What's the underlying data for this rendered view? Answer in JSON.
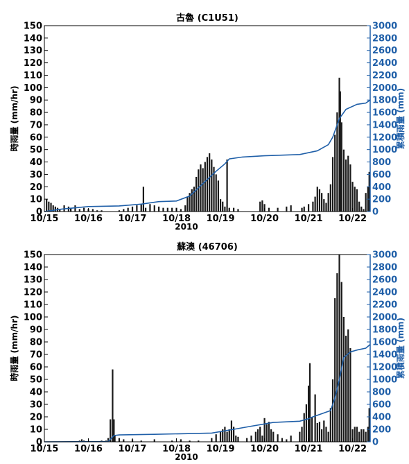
{
  "colors": {
    "bars": "#1a1a1a",
    "cumulative_line": "#1f5fa8",
    "right_axis": "#1f5fa8",
    "axes": "#000000"
  },
  "chart_data": [
    {
      "type": "bar",
      "title": "古魯 (C1U51)",
      "xlabel": "2010",
      "ylabel": "時雨量 (mm/hr)",
      "y2label": "累積雨量 (mm)",
      "xlim": [
        0,
        7.4
      ],
      "xticks": [
        0,
        1,
        2,
        3,
        4,
        5,
        6,
        7
      ],
      "xticklabels": [
        "10/15",
        "10/16",
        "10/17",
        "10/18",
        "10/19",
        "10/20",
        "10/21",
        "10/22"
      ],
      "ylim": [
        0,
        150
      ],
      "yticks": [
        0,
        10,
        20,
        30,
        40,
        50,
        60,
        70,
        80,
        90,
        100,
        110,
        120,
        130,
        140,
        150
      ],
      "y2lim": [
        0,
        3000
      ],
      "y2ticks": [
        0,
        200,
        400,
        600,
        800,
        1000,
        1200,
        1400,
        1600,
        1800,
        2000,
        2200,
        2400,
        2600,
        2800,
        3000
      ],
      "bars": {
        "name": "時雨量",
        "axis": "left",
        "points": [
          [
            0.05,
            10
          ],
          [
            0.1,
            8
          ],
          [
            0.15,
            7
          ],
          [
            0.2,
            5
          ],
          [
            0.25,
            4
          ],
          [
            0.3,
            3
          ],
          [
            0.35,
            2
          ],
          [
            0.45,
            5
          ],
          [
            0.55,
            4
          ],
          [
            0.6,
            3
          ],
          [
            0.7,
            5
          ],
          [
            0.8,
            2
          ],
          [
            0.9,
            3
          ],
          [
            1.0,
            2
          ],
          [
            1.1,
            2
          ],
          [
            1.2,
            1
          ],
          [
            1.3,
            1
          ],
          [
            1.7,
            1
          ],
          [
            1.8,
            2
          ],
          [
            1.9,
            3
          ],
          [
            2.0,
            4
          ],
          [
            2.1,
            5
          ],
          [
            2.2,
            6
          ],
          [
            2.25,
            20
          ],
          [
            2.3,
            3
          ],
          [
            2.4,
            6
          ],
          [
            2.5,
            5
          ],
          [
            2.6,
            4
          ],
          [
            2.7,
            3
          ],
          [
            2.8,
            3
          ],
          [
            2.9,
            3
          ],
          [
            3.0,
            3
          ],
          [
            3.1,
            2
          ],
          [
            3.2,
            5
          ],
          [
            3.25,
            12
          ],
          [
            3.3,
            15
          ],
          [
            3.35,
            18
          ],
          [
            3.4,
            20
          ],
          [
            3.45,
            28
          ],
          [
            3.5,
            34
          ],
          [
            3.55,
            38
          ],
          [
            3.6,
            35
          ],
          [
            3.65,
            40
          ],
          [
            3.7,
            44
          ],
          [
            3.75,
            47
          ],
          [
            3.8,
            42
          ],
          [
            3.85,
            36
          ],
          [
            3.9,
            30
          ],
          [
            3.95,
            25
          ],
          [
            4.0,
            10
          ],
          [
            4.05,
            8
          ],
          [
            4.1,
            4
          ],
          [
            4.15,
            42
          ],
          [
            4.2,
            3
          ],
          [
            4.3,
            3
          ],
          [
            4.4,
            2
          ],
          [
            4.9,
            8
          ],
          [
            4.95,
            9
          ],
          [
            5.0,
            6
          ],
          [
            5.1,
            3
          ],
          [
            5.3,
            3
          ],
          [
            5.5,
            4
          ],
          [
            5.6,
            5
          ],
          [
            5.85,
            3
          ],
          [
            5.9,
            4
          ],
          [
            6.0,
            6
          ],
          [
            6.1,
            8
          ],
          [
            6.15,
            12
          ],
          [
            6.2,
            20
          ],
          [
            6.25,
            18
          ],
          [
            6.3,
            15
          ],
          [
            6.35,
            10
          ],
          [
            6.4,
            7
          ],
          [
            6.45,
            15
          ],
          [
            6.5,
            22
          ],
          [
            6.55,
            44
          ],
          [
            6.6,
            62
          ],
          [
            6.65,
            80
          ],
          [
            6.7,
            108
          ],
          [
            6.72,
            97
          ],
          [
            6.75,
            72
          ],
          [
            6.8,
            50
          ],
          [
            6.85,
            42
          ],
          [
            6.9,
            45
          ],
          [
            6.95,
            38
          ],
          [
            7.0,
            24
          ],
          [
            7.05,
            20
          ],
          [
            7.1,
            18
          ],
          [
            7.15,
            8
          ],
          [
            7.2,
            4
          ],
          [
            7.25,
            2
          ],
          [
            7.3,
            15
          ],
          [
            7.35,
            20
          ],
          [
            7.38,
            32
          ]
        ]
      },
      "cumulative": {
        "name": "累積雨量",
        "axis": "right",
        "points": [
          [
            0,
            0
          ],
          [
            0.4,
            40
          ],
          [
            1.0,
            80
          ],
          [
            1.7,
            90
          ],
          [
            2.2,
            120
          ],
          [
            2.6,
            160
          ],
          [
            3.0,
            170
          ],
          [
            3.3,
            250
          ],
          [
            3.6,
            450
          ],
          [
            3.9,
            650
          ],
          [
            4.1,
            770
          ],
          [
            4.2,
            850
          ],
          [
            4.5,
            880
          ],
          [
            5.0,
            900
          ],
          [
            5.8,
            920
          ],
          [
            6.2,
            980
          ],
          [
            6.45,
            1080
          ],
          [
            6.55,
            1200
          ],
          [
            6.7,
            1500
          ],
          [
            6.85,
            1650
          ],
          [
            7.1,
            1730
          ],
          [
            7.3,
            1750
          ],
          [
            7.4,
            1800
          ]
        ]
      }
    },
    {
      "type": "bar",
      "title": "蘇澳 (46706)",
      "xlabel": "2010",
      "ylabel": "時雨量 (mm/hr)",
      "y2label": "累積雨量 (mm)",
      "xlim": [
        0,
        7.4
      ],
      "xticks": [
        0,
        1,
        2,
        3,
        4,
        5,
        6,
        7
      ],
      "xticklabels": [
        "10/15",
        "10/16",
        "10/17",
        "10/18",
        "10/19",
        "10/20",
        "10/21",
        "10/22"
      ],
      "ylim": [
        0,
        150
      ],
      "yticks": [
        0,
        10,
        20,
        30,
        40,
        50,
        60,
        70,
        80,
        90,
        100,
        110,
        120,
        130,
        140,
        150
      ],
      "y2lim": [
        0,
        3000
      ],
      "y2ticks": [
        0,
        200,
        400,
        600,
        800,
        1000,
        1200,
        1400,
        1600,
        1800,
        2000,
        2200,
        2400,
        2600,
        2800,
        3000
      ],
      "bars": {
        "name": "時雨量",
        "axis": "left",
        "points": [
          [
            0.8,
            1
          ],
          [
            0.85,
            2
          ],
          [
            0.9,
            1
          ],
          [
            1.3,
            1
          ],
          [
            1.4,
            1
          ],
          [
            1.45,
            3
          ],
          [
            1.5,
            18
          ],
          [
            1.55,
            58
          ],
          [
            1.58,
            18
          ],
          [
            1.6,
            5
          ],
          [
            1.7,
            3
          ],
          [
            1.8,
            2
          ],
          [
            2.0,
            2
          ],
          [
            2.2,
            1
          ],
          [
            2.5,
            2
          ],
          [
            2.9,
            1
          ],
          [
            3.1,
            2
          ],
          [
            3.3,
            1
          ],
          [
            3.5,
            1
          ],
          [
            3.8,
            3
          ],
          [
            3.9,
            6
          ],
          [
            4.0,
            8
          ],
          [
            4.05,
            10
          ],
          [
            4.1,
            12
          ],
          [
            4.15,
            8
          ],
          [
            4.2,
            10
          ],
          [
            4.25,
            17
          ],
          [
            4.3,
            12
          ],
          [
            4.35,
            5
          ],
          [
            4.4,
            4
          ],
          [
            4.6,
            3
          ],
          [
            4.7,
            5
          ],
          [
            4.8,
            8
          ],
          [
            4.85,
            10
          ],
          [
            4.9,
            12
          ],
          [
            4.95,
            5
          ],
          [
            5.0,
            19
          ],
          [
            5.05,
            14
          ],
          [
            5.1,
            16
          ],
          [
            5.15,
            10
          ],
          [
            5.2,
            8
          ],
          [
            5.3,
            6
          ],
          [
            5.4,
            3
          ],
          [
            5.5,
            2
          ],
          [
            5.6,
            5
          ],
          [
            5.8,
            8
          ],
          [
            5.85,
            12
          ],
          [
            5.9,
            23
          ],
          [
            5.95,
            30
          ],
          [
            6.0,
            45
          ],
          [
            6.03,
            63
          ],
          [
            6.08,
            20
          ],
          [
            6.15,
            38
          ],
          [
            6.2,
            15
          ],
          [
            6.25,
            16
          ],
          [
            6.3,
            10
          ],
          [
            6.35,
            17
          ],
          [
            6.4,
            12
          ],
          [
            6.45,
            8
          ],
          [
            6.5,
            27
          ],
          [
            6.55,
            50
          ],
          [
            6.6,
            115
          ],
          [
            6.65,
            135
          ],
          [
            6.7,
            150
          ],
          [
            6.75,
            128
          ],
          [
            6.8,
            100
          ],
          [
            6.85,
            85
          ],
          [
            6.9,
            90
          ],
          [
            6.95,
            75
          ],
          [
            7.0,
            10
          ],
          [
            7.05,
            12
          ],
          [
            7.1,
            12
          ],
          [
            7.15,
            8
          ],
          [
            7.2,
            10
          ],
          [
            7.25,
            10
          ],
          [
            7.3,
            8
          ],
          [
            7.35,
            12
          ],
          [
            7.38,
            27
          ]
        ]
      },
      "cumulative": {
        "name": "累積雨量",
        "axis": "right",
        "points": [
          [
            0,
            0
          ],
          [
            1.45,
            5
          ],
          [
            1.5,
            40
          ],
          [
            1.58,
            100
          ],
          [
            1.7,
            110
          ],
          [
            2.5,
            120
          ],
          [
            3.8,
            140
          ],
          [
            4.3,
            200
          ],
          [
            4.7,
            250
          ],
          [
            5.2,
            310
          ],
          [
            5.8,
            330
          ],
          [
            6.0,
            370
          ],
          [
            6.1,
            400
          ],
          [
            6.5,
            500
          ],
          [
            6.6,
            700
          ],
          [
            6.7,
            1000
          ],
          [
            6.8,
            1350
          ],
          [
            6.95,
            1440
          ],
          [
            7.1,
            1470
          ],
          [
            7.3,
            1500
          ],
          [
            7.4,
            1560
          ]
        ]
      }
    }
  ]
}
